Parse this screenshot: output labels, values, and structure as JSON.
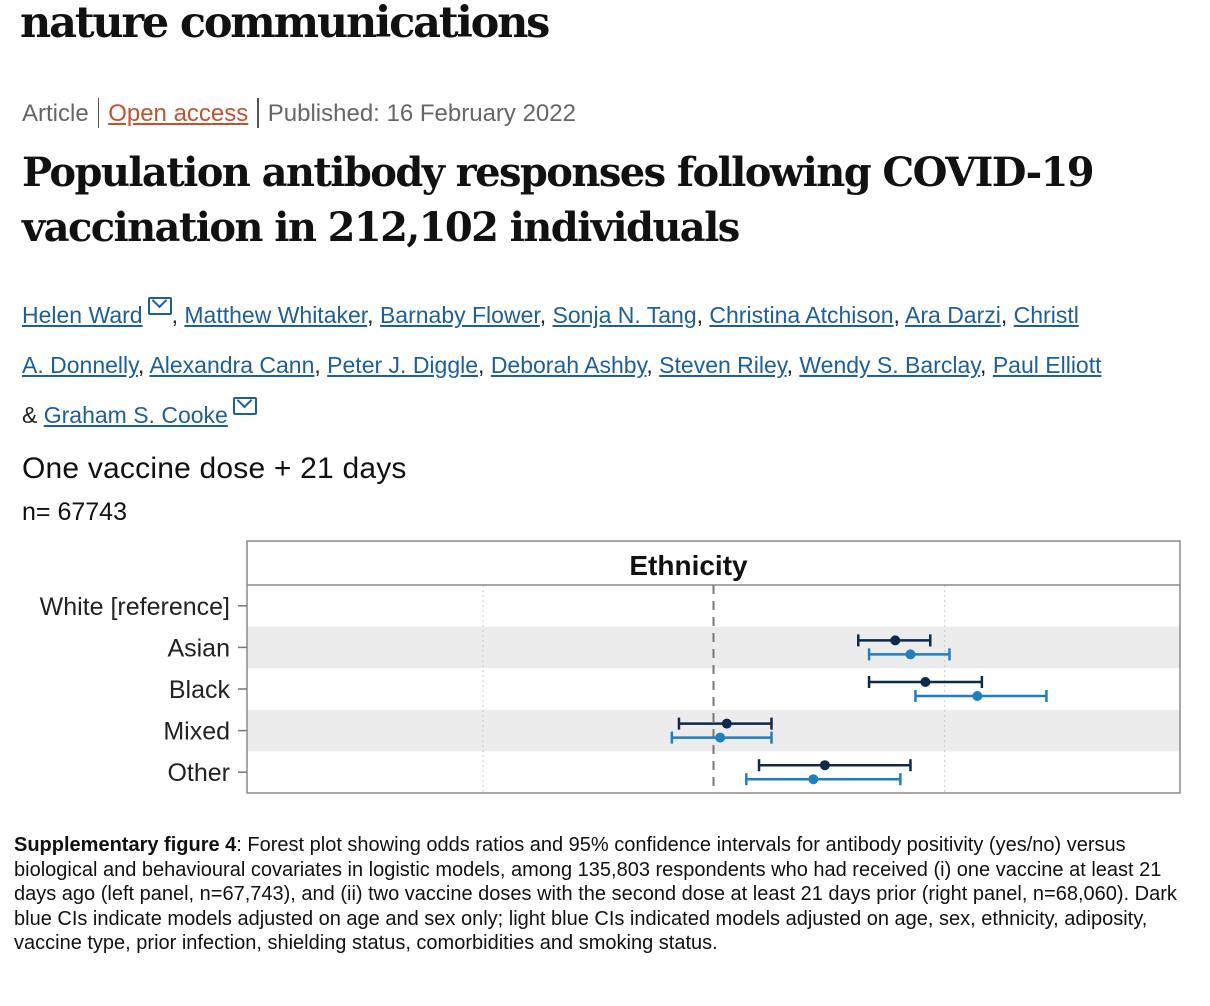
{
  "journal": "nature communications",
  "meta": {
    "type": "Article",
    "access": "Open access",
    "published": "Published: 16 February 2022"
  },
  "title": "Population antibody responses following COVID-19 vaccination in 212,102 individuals",
  "authors": {
    "line1": [
      "Helen Ward",
      "Matthew Whitaker",
      "Barnaby Flower",
      "Sonja N. Tang",
      "Christina Atchison",
      "Ara Darzi",
      "Christl"
    ],
    "line2": [
      "A. Donnelly",
      "Alexandra Cann",
      "Peter J. Diggle",
      "Deborah Ashby",
      "Steven Riley",
      "Wendy S. Barclay",
      "Paul Elliott"
    ],
    "amp": "&",
    "last": "Graham S. Cooke"
  },
  "panel": {
    "title": "One vaccine dose + 21 days",
    "n": "n= 67743"
  },
  "chart_data": {
    "type": "forest",
    "facet_title": "Ethnicity",
    "categories": [
      "White [reference]",
      "Asian",
      "Black",
      "Mixed",
      "Other"
    ],
    "reference_value": 1,
    "xscale": "log",
    "xlim": [
      0.5,
      2.0
    ],
    "xticks": [
      0.5,
      0.71,
      1,
      1.41,
      2.0
    ],
    "show_xtick_labels": false,
    "grid": true,
    "striped_rows": true,
    "series": [
      {
        "color": "#0d2a4a",
        "points": [
          {
            "category": "Asian",
            "estimate": 1.31,
            "lower": 1.24,
            "upper": 1.38
          },
          {
            "category": "Black",
            "estimate": 1.37,
            "lower": 1.26,
            "upper": 1.49
          },
          {
            "category": "Mixed",
            "estimate": 1.02,
            "lower": 0.95,
            "upper": 1.09
          },
          {
            "category": "Other",
            "estimate": 1.18,
            "lower": 1.07,
            "upper": 1.34
          }
        ]
      },
      {
        "color": "#1f7fbf",
        "points": [
          {
            "category": "Asian",
            "estimate": 1.34,
            "lower": 1.26,
            "upper": 1.42
          },
          {
            "category": "Black",
            "estimate": 1.48,
            "lower": 1.35,
            "upper": 1.64
          },
          {
            "category": "Mixed",
            "estimate": 1.01,
            "lower": 0.94,
            "upper": 1.09
          },
          {
            "category": "Other",
            "estimate": 1.16,
            "lower": 1.05,
            "upper": 1.32
          }
        ]
      }
    ]
  },
  "caption": {
    "label": "Supplementary figure 4",
    "text": ": Forest plot showing odds ratios and 95% confidence intervals for antibody positivity (yes/no) versus  biological and behavioural covariates in logistic models, among 135,803 respondents who had received (i) one vaccine at least 21 days ago  (left panel, n=67,743), and (ii) two vaccine doses with the second dose at least 21 days prior (right panel, n=68,060). Dark blue CIs indicate models adjusted on age and sex only; light blue CIs indicated models adjusted on age, sex, ethnicity, adiposity, vaccine type, prior infection, shielding status, comorbidities and smoking status."
  }
}
